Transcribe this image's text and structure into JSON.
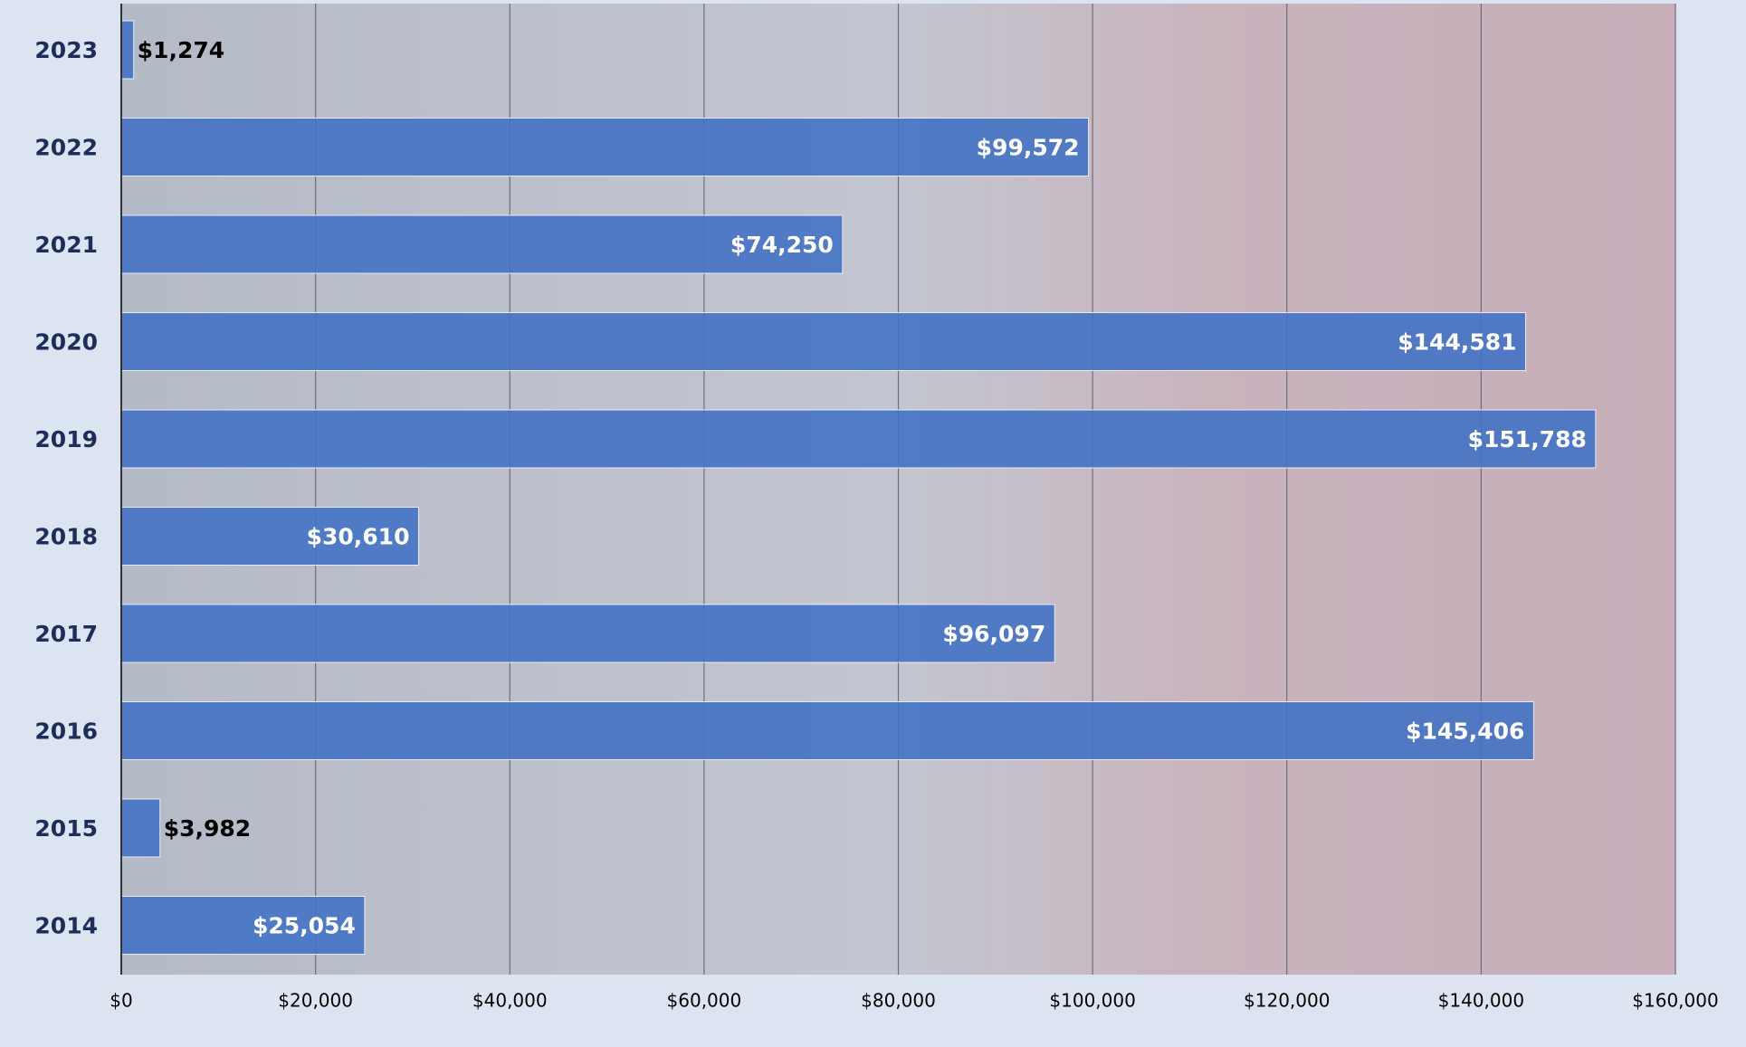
{
  "chart_data": {
    "type": "hbar",
    "categories": [
      "2023",
      "2022",
      "2021",
      "2020",
      "2019",
      "2018",
      "2017",
      "2016",
      "2015",
      "2014"
    ],
    "values": [
      1274,
      99572,
      74250,
      144581,
      151788,
      30610,
      96097,
      145406,
      3982,
      25054
    ],
    "value_labels": [
      "$1,274",
      "$99,572",
      "$74,250",
      "$144,581",
      "$151,788",
      "$30,610",
      "$96,097",
      "$145,406",
      "$3,982",
      "$25,054"
    ],
    "color": "#4472c4",
    "xlim": [
      0,
      160000
    ],
    "xticks": [
      {
        "value": 0,
        "label": "$0"
      },
      {
        "value": 20000,
        "label": "$20,000"
      },
      {
        "value": 40000,
        "label": "$40,000"
      },
      {
        "value": 60000,
        "label": "$60,000"
      },
      {
        "value": 80000,
        "label": "$80,000"
      },
      {
        "value": 100000,
        "label": "$100,000"
      },
      {
        "value": 120000,
        "label": "$120,000"
      },
      {
        "value": 140000,
        "label": "$140,000"
      },
      {
        "value": 160000,
        "label": "$160,000"
      }
    ],
    "grid": true
  }
}
